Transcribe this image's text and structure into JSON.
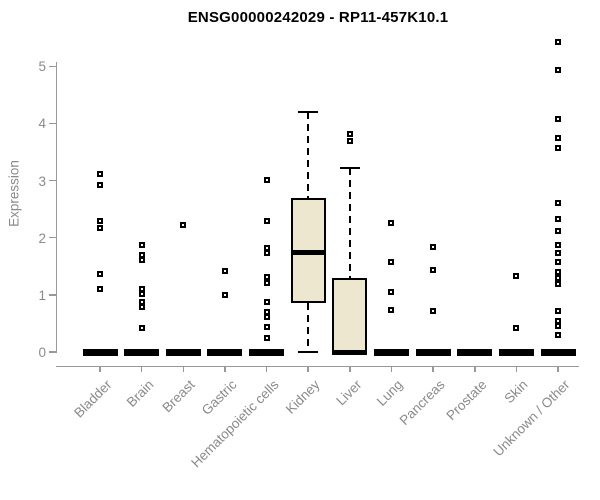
{
  "title": "ENSG00000242029 - RP11-457K10.1",
  "chart_data": {
    "type": "boxplot",
    "title": "ENSG00000242029 - RP11-457K10.1",
    "xlabel": "",
    "ylabel": "Expression",
    "ylim": [
      0,
      5.5
    ],
    "yticks": [
      "0",
      "1",
      "2",
      "3",
      "4",
      "5"
    ],
    "grid": false,
    "legend": "none",
    "categories": [
      "Bladder",
      "Brain",
      "Breast",
      "Gastric",
      "Hematopoietic cells",
      "Kidney",
      "Liver",
      "Lung",
      "Pancreas",
      "Prostate",
      "Skin",
      "Unknown / Other"
    ],
    "series": [
      {
        "label": "Bladder",
        "whisker_low": 0,
        "q1": 0,
        "median": 0,
        "q3": 0,
        "whisker_high": 0,
        "outliers": [
          3.11,
          2.92,
          2.29,
          2.17,
          1.36,
          1.1
        ]
      },
      {
        "label": "Brain",
        "whisker_low": 0,
        "q1": 0,
        "median": 0,
        "q3": 0,
        "whisker_high": 0,
        "outliers": [
          1.87,
          1.7,
          1.61,
          1.1,
          1.02,
          0.88,
          0.78,
          0.42
        ]
      },
      {
        "label": "Breast",
        "whisker_low": 0,
        "q1": 0,
        "median": 0,
        "q3": 0,
        "whisker_high": 0,
        "outliers": [
          2.22
        ]
      },
      {
        "label": "Gastric",
        "whisker_low": 0,
        "q1": 0,
        "median": 0,
        "q3": 0,
        "whisker_high": 0,
        "outliers": [
          1.42,
          1.0
        ]
      },
      {
        "label": "Hematopoietic cells",
        "whisker_low": 0,
        "q1": 0,
        "median": 0,
        "q3": 0,
        "whisker_high": 0,
        "outliers": [
          3.01,
          2.29,
          1.82,
          1.73,
          1.31,
          1.21,
          0.88,
          0.7,
          0.62,
          0.44,
          0.25
        ]
      },
      {
        "label": "Kidney",
        "whisker_low": 0,
        "q1": 0.86,
        "median": 1.75,
        "q3": 2.7,
        "whisker_high": 4.2,
        "outliers": []
      },
      {
        "label": "Liver",
        "whisker_low": 0,
        "q1": 0,
        "median": 0,
        "q3": 1.3,
        "whisker_high": 3.22,
        "outliers": [
          3.81,
          3.69
        ]
      },
      {
        "label": "Lung",
        "whisker_low": 0,
        "q1": 0,
        "median": 0,
        "q3": 0,
        "whisker_high": 0,
        "outliers": [
          2.26,
          1.57,
          1.05,
          0.73
        ]
      },
      {
        "label": "Pancreas",
        "whisker_low": 0,
        "q1": 0,
        "median": 0,
        "q3": 0,
        "whisker_high": 0,
        "outliers": [
          1.84,
          1.44,
          0.72
        ]
      },
      {
        "label": "Prostate",
        "whisker_low": 0,
        "q1": 0,
        "median": 0,
        "q3": 0,
        "whisker_high": 0,
        "outliers": []
      },
      {
        "label": "Skin",
        "whisker_low": 0,
        "q1": 0,
        "median": 0,
        "q3": 0,
        "whisker_high": 0,
        "outliers": [
          1.33,
          0.42
        ]
      },
      {
        "label": "Unknown / Other",
        "whisker_low": 0,
        "q1": 0,
        "median": 0,
        "q3": 0,
        "whisker_high": 0,
        "outliers": [
          5.43,
          4.93,
          4.08,
          3.75,
          3.57,
          2.61,
          2.33,
          2.12,
          1.87,
          1.74,
          1.58,
          1.4,
          1.3,
          1.19,
          0.72,
          0.55,
          0.45,
          0.3
        ]
      }
    ],
    "colors": {
      "box_fill": "#ece7ce",
      "box_border": "#000000",
      "median": "#000000",
      "axis": "#999999",
      "axis_text": "#8a8a8a",
      "title_text": "#000000",
      "background": "#ffffff"
    }
  }
}
